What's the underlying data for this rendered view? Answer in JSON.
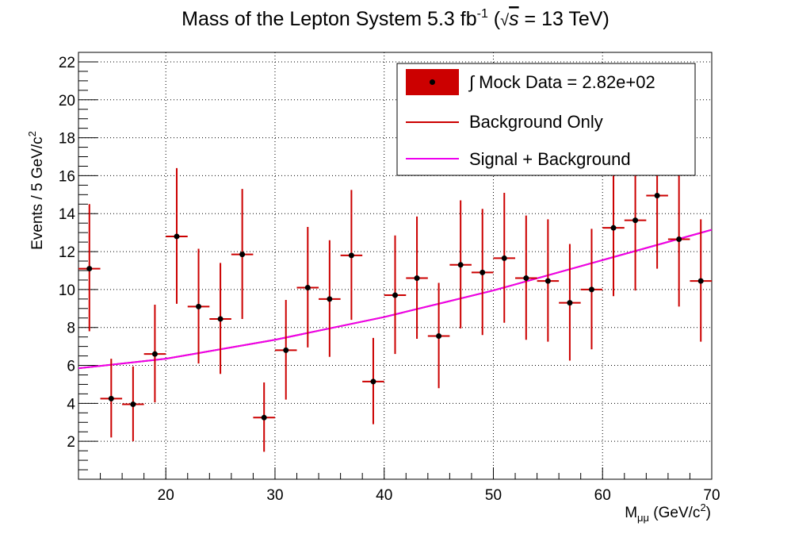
{
  "chart_data": {
    "type": "scatter",
    "title": {
      "main": "Mass of the Lepton System 5.3 fb",
      "sup": "-1",
      "paren_open": " (",
      "sqrt": "√",
      "s": "s",
      "rest": " = 13 TeV)"
    },
    "xlabel": {
      "main": "M",
      "sub": "μμ",
      "units": " (GeV/c",
      "sup": "2",
      "close": ")"
    },
    "ylabel": {
      "main": "Events / 5 GeV/c",
      "sup": "2"
    },
    "xlim": [
      12,
      70
    ],
    "ylim": [
      0,
      22.5
    ],
    "x_ticks": [
      20,
      30,
      40,
      50,
      60,
      70
    ],
    "y_ticks": [
      2,
      4,
      6,
      8,
      10,
      12,
      14,
      16,
      18,
      20,
      22
    ],
    "grid": true,
    "legend_position": "top-right",
    "bin_width": 2,
    "series": [
      {
        "name": "∫ Mock Data = 2.82e+02",
        "type": "errorbar",
        "x": [
          13,
          15,
          17,
          19,
          21,
          23,
          25,
          27,
          29,
          31,
          33,
          35,
          37,
          39,
          41,
          43,
          45,
          47,
          49,
          51,
          53,
          55,
          57,
          59,
          61,
          63,
          65,
          67,
          69
        ],
        "y": [
          11.1,
          4.25,
          3.95,
          6.6,
          12.8,
          9.1,
          8.45,
          11.85,
          3.25,
          6.8,
          10.1,
          9.5,
          11.8,
          5.15,
          9.7,
          10.6,
          7.55,
          11.3,
          10.9,
          11.65,
          10.6,
          10.45,
          9.3,
          10.0,
          13.25,
          13.65,
          14.95,
          12.65,
          10.45
        ],
        "err_low": [
          3.3,
          2.05,
          1.95,
          2.55,
          3.55,
          3.0,
          2.9,
          3.4,
          1.8,
          2.6,
          3.15,
          3.05,
          3.4,
          2.25,
          3.1,
          3.2,
          2.75,
          3.35,
          3.3,
          3.4,
          3.25,
          3.2,
          3.05,
          3.15,
          3.6,
          3.7,
          3.85,
          3.55,
          3.2
        ],
        "err_high": [
          3.4,
          2.1,
          2.0,
          2.6,
          3.6,
          3.05,
          2.95,
          3.45,
          1.85,
          2.65,
          3.2,
          3.1,
          3.45,
          2.3,
          3.15,
          3.25,
          2.8,
          3.4,
          3.35,
          3.45,
          3.3,
          3.25,
          3.1,
          3.2,
          3.65,
          3.75,
          3.9,
          3.6,
          3.25
        ],
        "marker_color": "#000000",
        "errorbar_color": "#cc0000"
      },
      {
        "name": "Background Only",
        "type": "line",
        "x": [
          12,
          20,
          30,
          40,
          50,
          60,
          70
        ],
        "y": [
          5.85,
          6.35,
          7.35,
          8.55,
          9.95,
          11.55,
          13.15
        ],
        "color": "#cc0000"
      },
      {
        "name": "Signal + Background",
        "type": "line",
        "x": [
          12,
          20,
          30,
          40,
          50,
          60,
          70
        ],
        "y": [
          5.85,
          6.35,
          7.35,
          8.55,
          9.95,
          11.55,
          13.15
        ],
        "color": "#ee00ee"
      }
    ]
  }
}
